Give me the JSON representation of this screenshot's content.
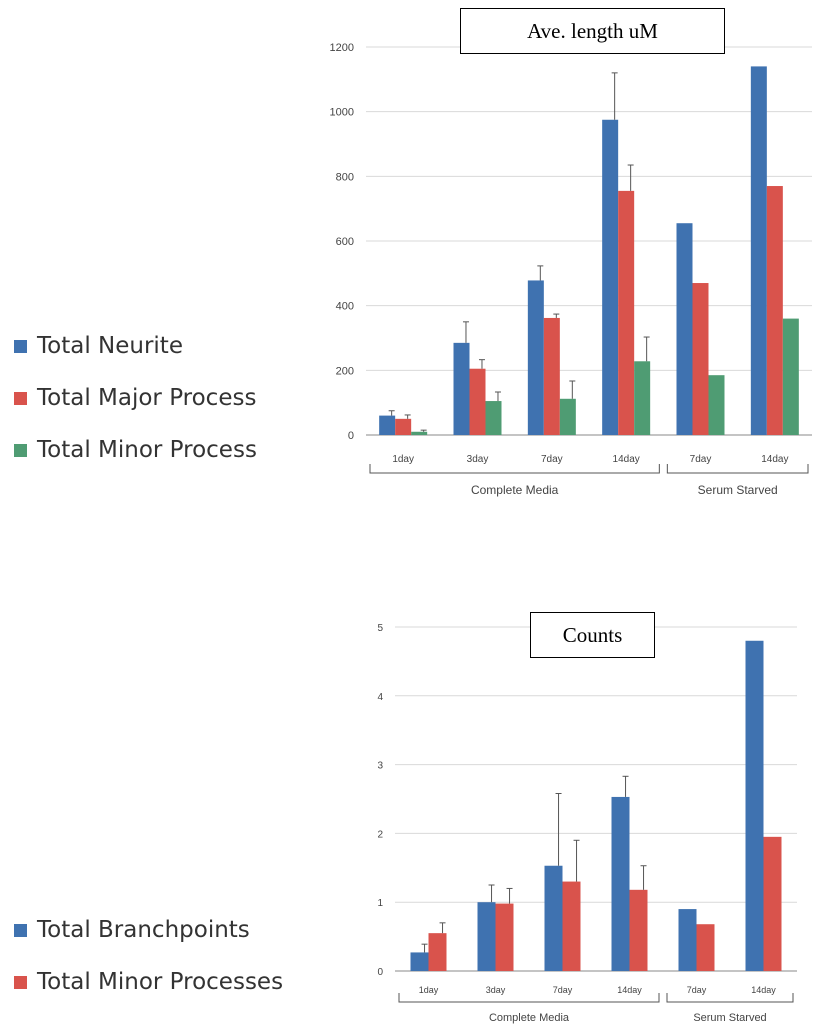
{
  "colors": {
    "blue": "#3f72b0",
    "red": "#d9534c",
    "green": "#4f9c73"
  },
  "chart_data": [
    {
      "type": "bar",
      "title": "Ave. length uM",
      "ylim": [
        0,
        1200
      ],
      "yticks": [
        "0",
        "200",
        "400",
        "600",
        "800",
        "1000",
        "1200"
      ],
      "categories": [
        "1day",
        "3day",
        "7day",
        "14day",
        "7day",
        "14day"
      ],
      "groups": [
        {
          "label": "Complete Media",
          "span": [
            0,
            3
          ]
        },
        {
          "label": "Serum Starved",
          "span": [
            4,
            5
          ]
        }
      ],
      "series": [
        {
          "name": "Total Neurite",
          "color": "#3f72b0",
          "values": [
            60,
            285,
            478,
            975,
            655,
            1140
          ],
          "errors": [
            15,
            65,
            45,
            145,
            null,
            null
          ]
        },
        {
          "name": "Total Major Process",
          "color": "#d9534c",
          "values": [
            50,
            205,
            362,
            755,
            470,
            770
          ],
          "errors": [
            12,
            28,
            12,
            80,
            null,
            null
          ]
        },
        {
          "name": "Total Minor Process",
          "color": "#4f9c73",
          "values": [
            10,
            105,
            112,
            228,
            185,
            360
          ],
          "errors": [
            5,
            28,
            55,
            75,
            null,
            null
          ]
        }
      ]
    },
    {
      "type": "bar",
      "title": "Counts",
      "ylim": [
        0,
        5
      ],
      "yticks": [
        "0",
        "1",
        "2",
        "3",
        "4",
        "5"
      ],
      "categories": [
        "1day",
        "3day",
        "7day",
        "14day",
        "7day",
        "14day"
      ],
      "groups": [
        {
          "label": "Complete Media",
          "span": [
            0,
            3
          ]
        },
        {
          "label": "Serum Starved",
          "span": [
            4,
            5
          ]
        }
      ],
      "series": [
        {
          "name": "Total Branchpoints",
          "color": "#3f72b0",
          "values": [
            0.27,
            1.0,
            1.53,
            2.53,
            0.9,
            4.8
          ],
          "errors": [
            0.12,
            0.25,
            1.05,
            0.3,
            null,
            null
          ]
        },
        {
          "name": "Total Minor Processes",
          "color": "#d9534c",
          "values": [
            0.55,
            0.98,
            1.3,
            1.18,
            0.68,
            1.95
          ],
          "errors": [
            0.15,
            0.22,
            0.6,
            0.35,
            null,
            null
          ]
        }
      ]
    }
  ]
}
